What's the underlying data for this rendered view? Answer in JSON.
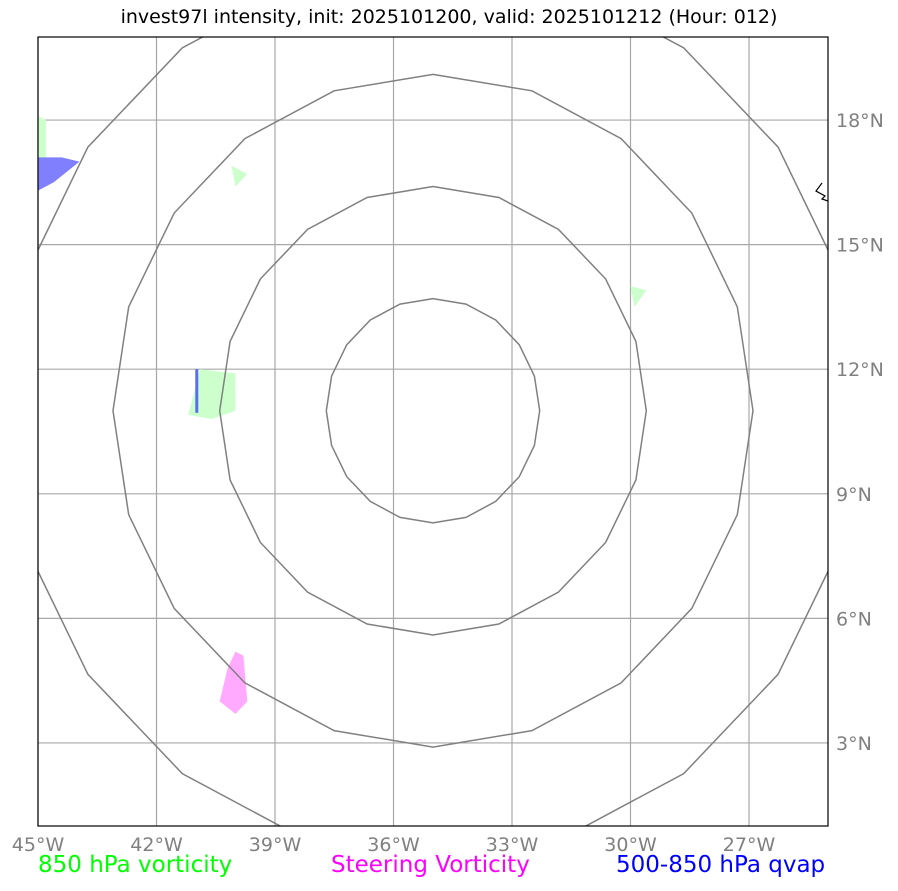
{
  "title": "invest97l intensity, init: 2025101200, valid: 2025101212 (Hour: 012)",
  "map": {
    "lon_range": [
      -45,
      -25
    ],
    "lat_range": [
      1,
      20
    ],
    "center": {
      "lon": -35,
      "lat": 11
    }
  },
  "lon_ticks": [
    {
      "lon": -45,
      "label": "45°W"
    },
    {
      "lon": -42,
      "label": "42°W"
    },
    {
      "lon": -39,
      "label": "39°W"
    },
    {
      "lon": -36,
      "label": "36°W"
    },
    {
      "lon": -33,
      "label": "33°W"
    },
    {
      "lon": -30,
      "label": "30°W"
    },
    {
      "lon": -27,
      "label": "27°W"
    }
  ],
  "lat_ticks": [
    {
      "lat": 3,
      "label": "3°N"
    },
    {
      "lat": 6,
      "label": "6°N"
    },
    {
      "lat": 9,
      "label": "9°N"
    },
    {
      "lat": 12,
      "label": "12°N"
    },
    {
      "lat": 15,
      "label": "15°N"
    },
    {
      "lat": 18,
      "label": "18°N"
    }
  ],
  "range_rings_deg": [
    2.7,
    5.4,
    8.1,
    10.8
  ],
  "fields": [
    {
      "name": "850 hPa vorticity",
      "color": "#ccffcc",
      "polygons": [
        [
          [
            -45,
            18.1
          ],
          [
            -44.8,
            18.0
          ],
          [
            -44.8,
            16.9
          ],
          [
            -45,
            16.9
          ]
        ],
        [
          [
            -40.1,
            16.9
          ],
          [
            -39.7,
            16.7
          ],
          [
            -40.0,
            16.4
          ]
        ],
        [
          [
            -40.9,
            12.0
          ],
          [
            -40.0,
            11.9
          ],
          [
            -40.0,
            11.0
          ],
          [
            -40.6,
            10.8
          ],
          [
            -41.2,
            10.9
          ],
          [
            -41.0,
            11.6
          ]
        ],
        [
          [
            -30.0,
            14.0
          ],
          [
            -29.6,
            13.9
          ],
          [
            -29.9,
            13.5
          ]
        ]
      ]
    },
    {
      "name": "Steering Vorticity",
      "color": "#ffaaff",
      "polygons": [
        [
          [
            -40.0,
            5.2
          ],
          [
            -39.8,
            5.1
          ],
          [
            -39.7,
            4.0
          ],
          [
            -40.0,
            3.7
          ],
          [
            -40.4,
            4.0
          ],
          [
            -40.2,
            4.8
          ]
        ]
      ]
    },
    {
      "name": "500-850 hPa qvap",
      "color": "#8080ff",
      "polygons": [
        [
          [
            -45,
            17.1
          ],
          [
            -44.4,
            17.1
          ],
          [
            -43.95,
            17.0
          ],
          [
            -44.6,
            16.5
          ],
          [
            -45,
            16.3
          ]
        ]
      ]
    }
  ],
  "qvap_line": [
    [
      -40.98,
      12.0
    ],
    [
      -40.98,
      10.95
    ]
  ],
  "legend": [
    {
      "label": "850 hPa vorticity",
      "color": "#00ff00"
    },
    {
      "label": "Steering Vorticity",
      "color": "#ff00ff"
    },
    {
      "label": "500-850 hPa qvap",
      "color": "#0000ff"
    }
  ]
}
